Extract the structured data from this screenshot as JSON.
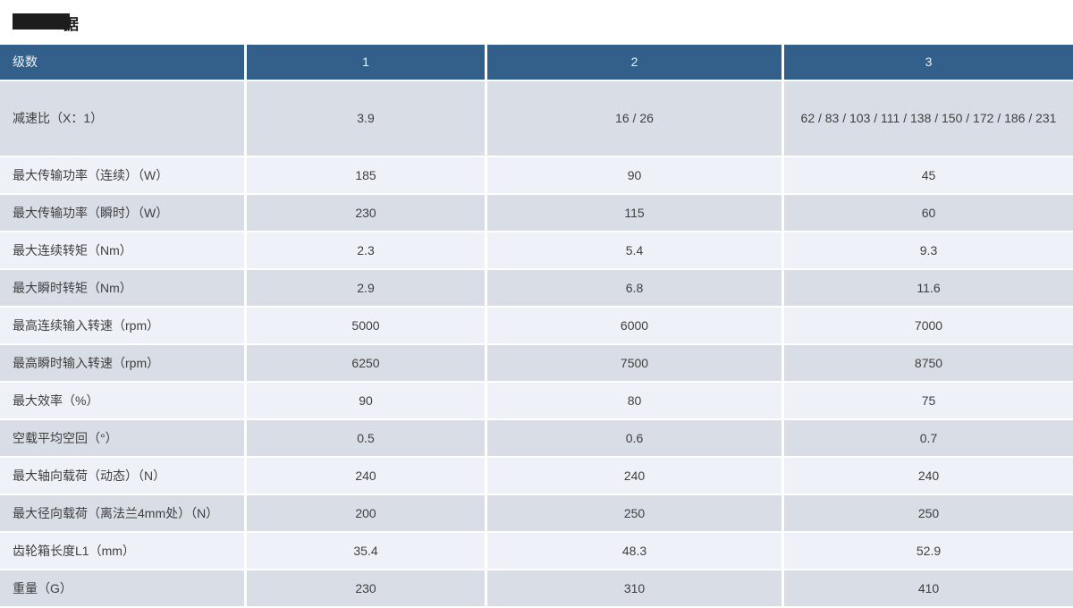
{
  "title": {
    "visible_char": "据",
    "note_redacted": true
  },
  "colors": {
    "header_bg": "#33608A",
    "row_dark": "#D8DDE6",
    "row_light": "#EEF1F7",
    "header_text": "#F2F2F2",
    "cell_text": "#3F3F3F"
  },
  "table": {
    "header": {
      "label": "级数",
      "columns": [
        "1",
        "2",
        "3"
      ]
    },
    "rows": [
      {
        "label": "减速比（X：1）",
        "values": [
          "3.9",
          "16 / 26",
          "62 / 83 / 103 / 111 / 138 / 150 / 172 / 186 / 231"
        ],
        "tall": true
      },
      {
        "label": "最大传输功率（连续）（W）",
        "values": [
          "185",
          "90",
          "45"
        ]
      },
      {
        "label": "最大传输功率（瞬时）（W）",
        "values": [
          "230",
          "115",
          "60"
        ]
      },
      {
        "label": "最大连续转矩（Nm）",
        "values": [
          "2.3",
          "5.4",
          "9.3"
        ]
      },
      {
        "label": "最大瞬时转矩（Nm）",
        "values": [
          "2.9",
          "6.8",
          "11.6"
        ]
      },
      {
        "label": "最高连续输入转速（rpm）",
        "values": [
          "5000",
          "6000",
          "7000"
        ]
      },
      {
        "label": "最高瞬时输入转速（rpm）",
        "values": [
          "6250",
          "7500",
          "8750"
        ]
      },
      {
        "label": "最大效率（%）",
        "values": [
          "90",
          "80",
          "75"
        ]
      },
      {
        "label": "空载平均空回（°）",
        "values": [
          "0.5",
          "0.6",
          "0.7"
        ]
      },
      {
        "label": "最大轴向载荷（动态）（N）",
        "values": [
          "240",
          "240",
          "240"
        ]
      },
      {
        "label": "最大径向载荷（离法兰4mm处）（N）",
        "values": [
          "200",
          "250",
          "250"
        ]
      },
      {
        "label": "齿轮箱长度L1（mm）",
        "values": [
          "35.4",
          "48.3",
          "52.9"
        ]
      },
      {
        "label": "重量（G）",
        "values": [
          "230",
          "310",
          "410"
        ]
      }
    ]
  }
}
